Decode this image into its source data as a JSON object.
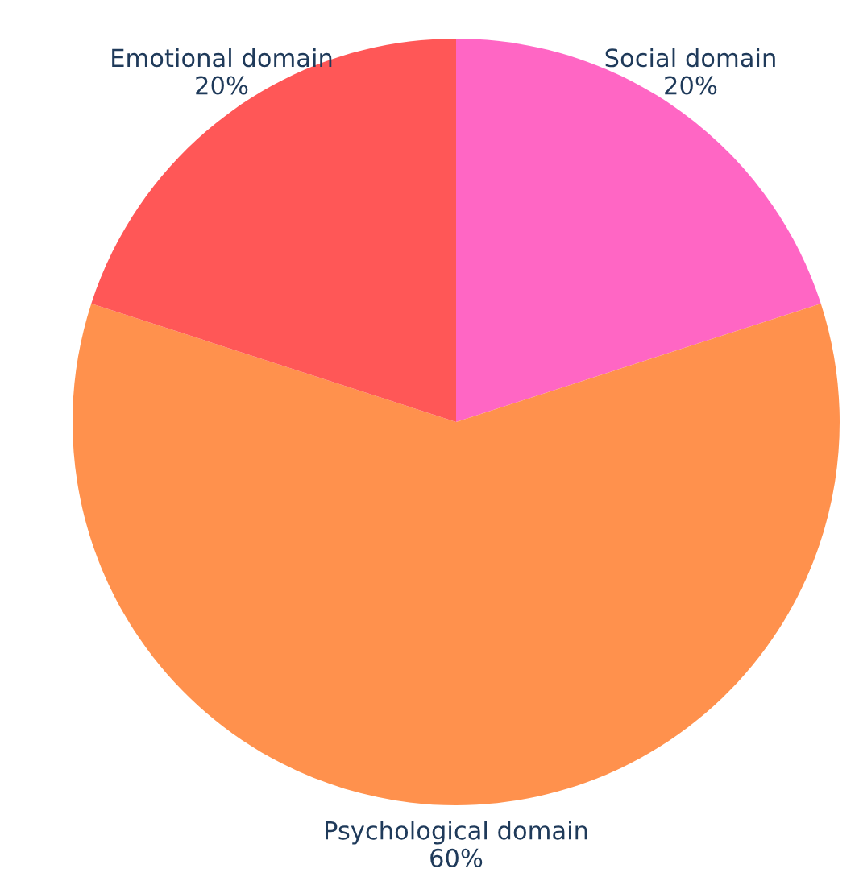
{
  "chart_data": {
    "type": "pie",
    "categories": [
      "Social domain",
      "Psychological domain",
      "Emotional domain"
    ],
    "values": [
      20,
      60,
      20
    ],
    "value_labels": [
      "20%",
      "60%",
      "20%"
    ],
    "colors": [
      "#ff66c4",
      "#ff914d",
      "#ff5757"
    ]
  }
}
